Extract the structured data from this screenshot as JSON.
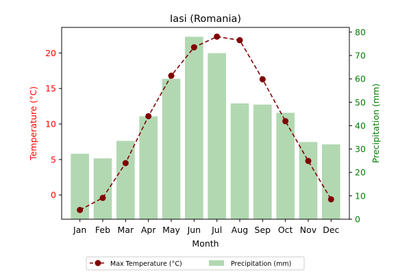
{
  "chart_data": {
    "type": "bar",
    "title": "Iasi (Romania)",
    "xlabel": "Month",
    "ylabel_left": "Temperature (°C)",
    "ylabel_right": "Precipitation (mm)",
    "categories": [
      "Jan",
      "Feb",
      "Mar",
      "Apr",
      "May",
      "Jun",
      "Jul",
      "Aug",
      "Sep",
      "Oct",
      "Nov",
      "Dec"
    ],
    "ylim_left": [
      -3.4,
      23.6
    ],
    "ylim_right": [
      0,
      82
    ],
    "yticks_left": [
      0,
      5,
      10,
      15,
      20
    ],
    "yticks_right": [
      0,
      10,
      20,
      30,
      40,
      50,
      60,
      70,
      80
    ],
    "legend_placement": "bottom-center",
    "grid": false,
    "series": [
      {
        "name": "Max Temperature (°C)",
        "type": "line",
        "axis": "left",
        "values": [
          -2.1,
          -0.4,
          4.5,
          11.1,
          16.8,
          20.8,
          22.3,
          21.8,
          16.3,
          10.4,
          4.8,
          -0.6
        ],
        "color": "#800000",
        "line_style": "dashed",
        "marker": "circle"
      },
      {
        "name": "Precipitation (mm)",
        "type": "bar",
        "axis": "right",
        "values": [
          28,
          26,
          33.5,
          44,
          60,
          78,
          71,
          49.5,
          49,
          45.5,
          33,
          32
        ],
        "color": "#b2d8b2"
      }
    ],
    "colors": {
      "left_axis": "#ff0000",
      "right_axis": "#008000"
    }
  }
}
